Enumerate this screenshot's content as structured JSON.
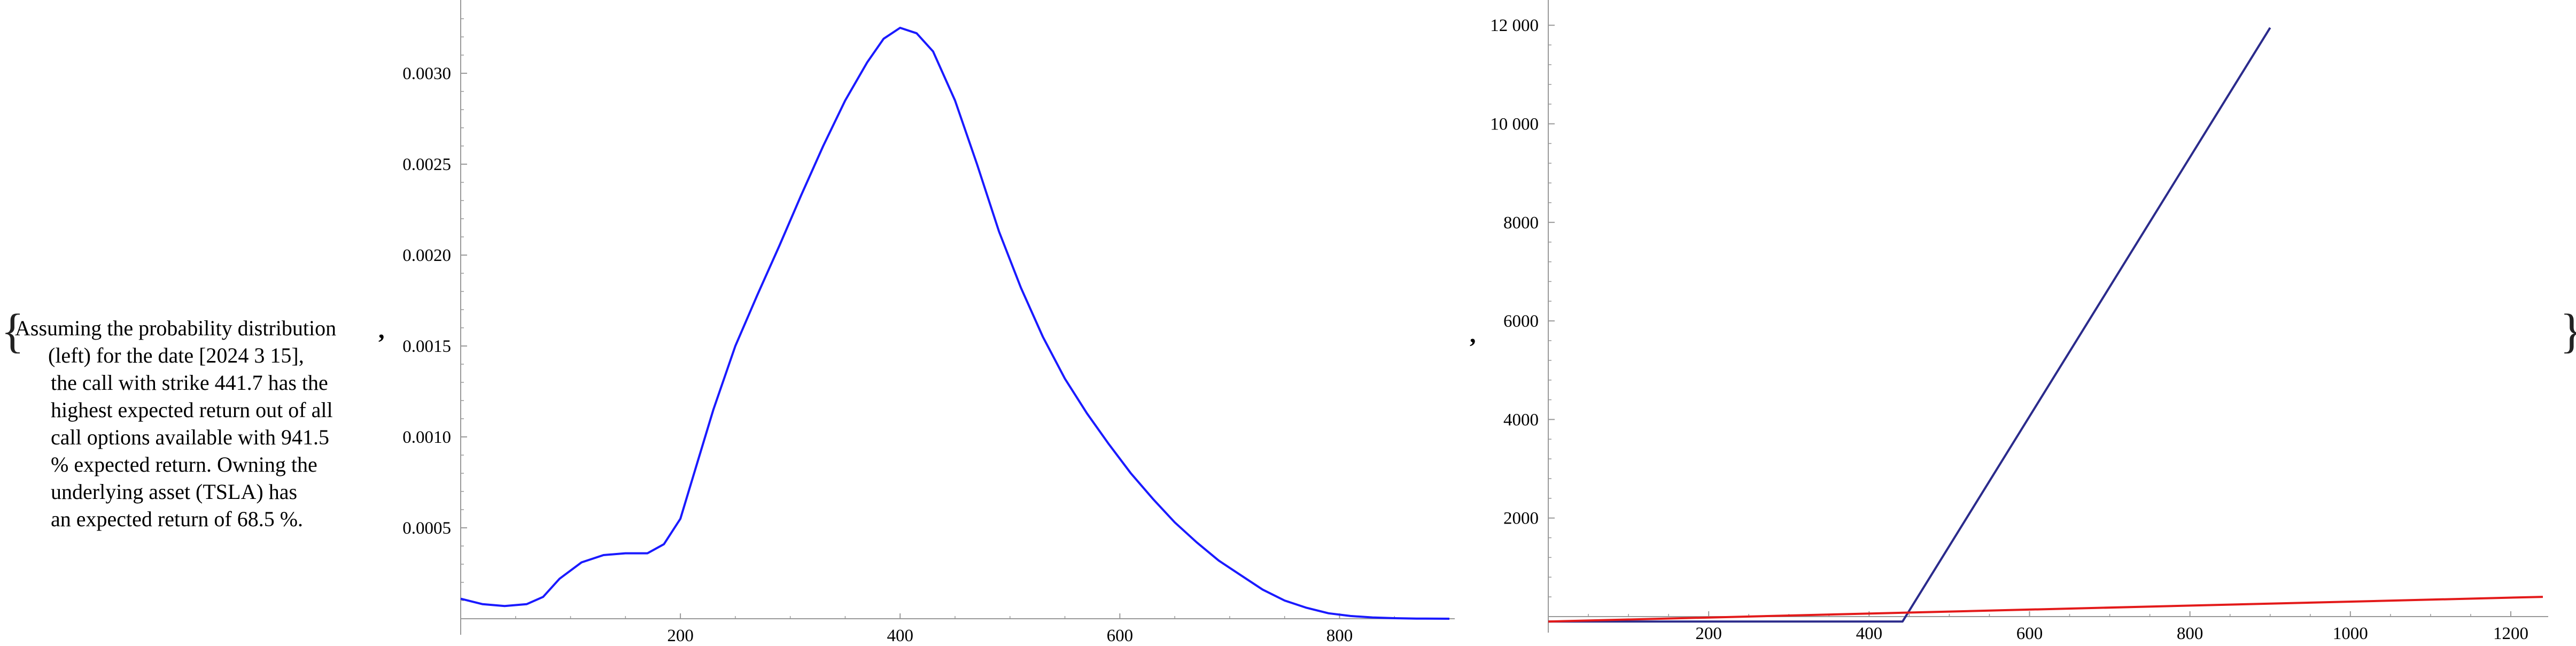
{
  "note": {
    "lines": [
      "Assuming the probability distribution",
      "(left) for the date [2024 3 15],",
      "the call with strike 441.7 has the",
      "highest expected return out of all",
      "call options available with 941.5",
      "% expected return. Owning the",
      "underlying asset (TSLA) has",
      "an expected return of 68.5 %."
    ]
  },
  "punct": {
    "open_brace": "{",
    "close_brace": "}",
    "comma": ","
  },
  "colors": {
    "density": "#1a1aff",
    "call_payoff": "#2b2b8c",
    "asset_payoff": "#e31a1a",
    "axis": "#999999"
  },
  "chart_data": [
    {
      "type": "line",
      "title": "",
      "xlabel": "",
      "ylabel": "",
      "xlim": [
        0,
        900
      ],
      "ylim": [
        0,
        0.0033
      ],
      "x_ticks": [
        200,
        400,
        600,
        800
      ],
      "x_tick_labels": [
        "200",
        "400",
        "600",
        "800"
      ],
      "y_ticks": [
        0.0005,
        0.001,
        0.0015,
        0.002,
        0.0025,
        0.003
      ],
      "y_tick_labels": [
        "0.0005",
        "0.0010",
        "0.0015",
        "0.0020",
        "0.0025",
        "0.0030"
      ],
      "grid": false,
      "series": [
        {
          "x": [
            0,
            20,
            40,
            60,
            75,
            90,
            110,
            130,
            150,
            170,
            185,
            200,
            215,
            230,
            250,
            270,
            290,
            310,
            330,
            350,
            370,
            385,
            400,
            415,
            430,
            450,
            470,
            490,
            510,
            530,
            550,
            570,
            590,
            610,
            630,
            650,
            670,
            690,
            710,
            730,
            750,
            770,
            790,
            810,
            830,
            850,
            870,
            900
          ],
          "y": [
            0.00011,
            8e-05,
            7e-05,
            8e-05,
            0.00012,
            0.00022,
            0.00031,
            0.00035,
            0.00036,
            0.00036,
            0.00041,
            0.00055,
            0.00085,
            0.00115,
            0.0015,
            0.00178,
            0.00205,
            0.00233,
            0.0026,
            0.00285,
            0.00306,
            0.00319,
            0.00325,
            0.00322,
            0.00312,
            0.00285,
            0.0025,
            0.00213,
            0.00182,
            0.00155,
            0.00132,
            0.00113,
            0.00096,
            0.0008,
            0.00066,
            0.00053,
            0.00042,
            0.00032,
            0.00024,
            0.00016,
            0.0001,
            6e-05,
            3e-05,
            1.5e-05,
            7e-06,
            3e-06,
            1e-06,
            0
          ]
        }
      ]
    },
    {
      "type": "line",
      "title": "",
      "xlabel": "",
      "ylabel": "",
      "xlim": [
        0,
        1240
      ],
      "ylim": [
        0,
        12100
      ],
      "x_ticks": [
        200,
        400,
        600,
        800,
        1000,
        1200
      ],
      "x_tick_labels": [
        "200",
        "400",
        "600",
        "800",
        "1000",
        "1200"
      ],
      "y_ticks": [
        2000,
        4000,
        6000,
        8000,
        10000,
        12000
      ],
      "y_tick_labels": [
        "2000",
        "4000",
        "6000",
        "8000",
        "10 000",
        "12 000"
      ],
      "grid": false,
      "series": [
        {
          "x": [
            0,
            441.7,
            900
          ],
          "y": [
            -100,
            -100,
            11950
          ]
        },
        {
          "x": [
            0,
            1240
          ],
          "y": [
            -100,
            400
          ]
        }
      ]
    }
  ]
}
